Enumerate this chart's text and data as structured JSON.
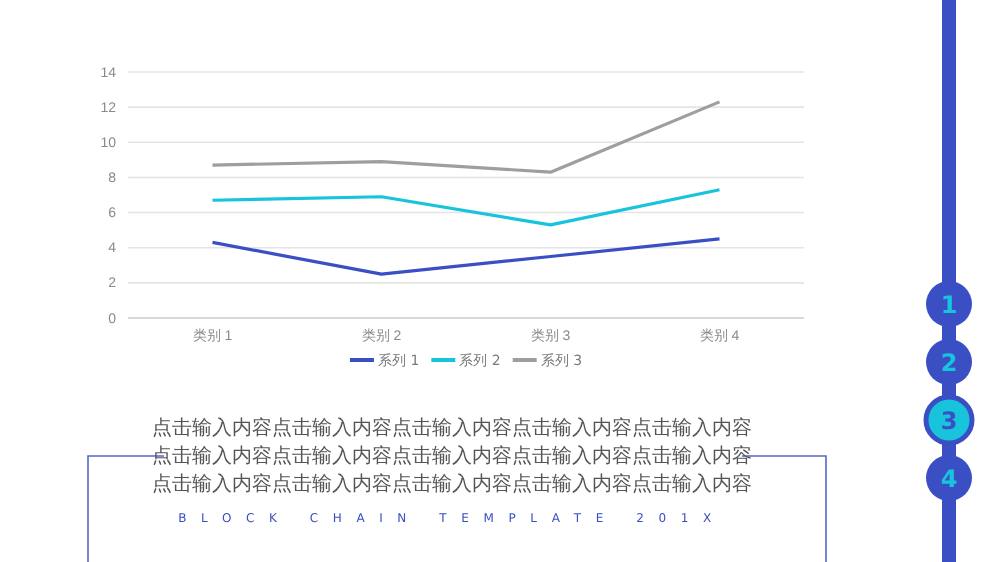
{
  "chart_data": {
    "type": "line",
    "categories": [
      "类别 1",
      "类别 2",
      "类别 3",
      "类别 4"
    ],
    "series": [
      {
        "name": "系列 1",
        "color": "#3a4fc4",
        "values": [
          4.3,
          2.5,
          3.5,
          4.5
        ]
      },
      {
        "name": "系列 2",
        "color": "#18c4dc",
        "values": [
          6.7,
          6.9,
          5.3,
          7.3
        ]
      },
      {
        "name": "系列 3",
        "color": "#9e9e9e",
        "values": [
          8.7,
          8.9,
          8.3,
          12.3
        ]
      }
    ],
    "ylim": [
      0,
      14
    ],
    "yticks": [
      0,
      2,
      4,
      6,
      8,
      10,
      12,
      14
    ],
    "grid": "y",
    "legend": "bottom",
    "marker": "none",
    "line_style": "solid",
    "annotations": [
      "点击输入内容点击输入内容点击输入内容点击输入内容点击输入内容",
      "点击输入内容点击输入内容点击输入内容点击输入内容点击输入内容",
      "点击输入内容点击输入内容点击输入内容点击输入内容点击输入内容",
      "BLOCK CHAIN TEMPLATE 201X",
      "1",
      "2",
      "3",
      "4"
    ]
  }
}
